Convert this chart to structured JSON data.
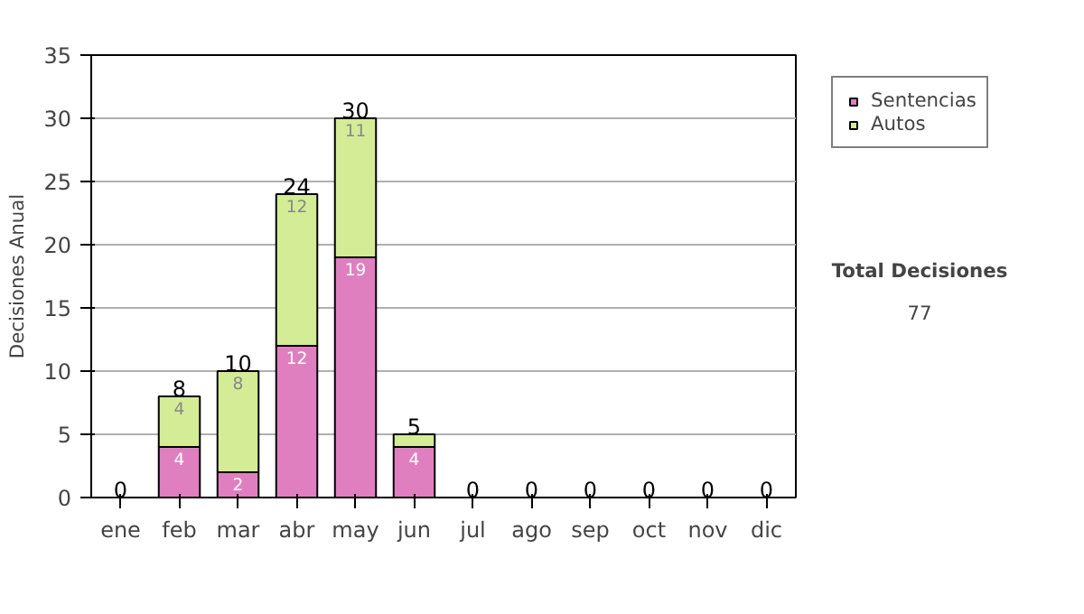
{
  "chart_data": {
    "type": "bar",
    "stacked": true,
    "ylabel": "Decisiones Anual",
    "categories": [
      "ene",
      "feb",
      "mar",
      "abr",
      "may",
      "jun",
      "jul",
      "ago",
      "sep",
      "oct",
      "nov",
      "dic"
    ],
    "series": [
      {
        "name": "Sentencias",
        "color": "#e07fc0",
        "values": [
          0,
          4,
          2,
          12,
          19,
          4,
          0,
          0,
          0,
          0,
          0,
          0
        ],
        "value_labels": [
          null,
          "4",
          "2",
          "12",
          "19",
          "4",
          null,
          null,
          null,
          null,
          null,
          null
        ]
      },
      {
        "name": "Autos",
        "color": "#d4ec96",
        "values": [
          0,
          4,
          8,
          12,
          11,
          1,
          0,
          0,
          0,
          0,
          0,
          0
        ],
        "value_labels": [
          null,
          "4",
          "8",
          "12",
          "11",
          null,
          null,
          null,
          null,
          null,
          null,
          null
        ]
      }
    ],
    "totals": [
      "0",
      "8",
      "10",
      "24",
      "30",
      "5",
      "0",
      "0",
      "0",
      "0",
      "0",
      "0"
    ],
    "ylim": [
      0,
      35
    ],
    "yticks": [
      0,
      5,
      10,
      15,
      20,
      25,
      30,
      35
    ],
    "grid": "y",
    "legend": "right",
    "annotations": [
      "Total Decisiones",
      "77"
    ]
  }
}
